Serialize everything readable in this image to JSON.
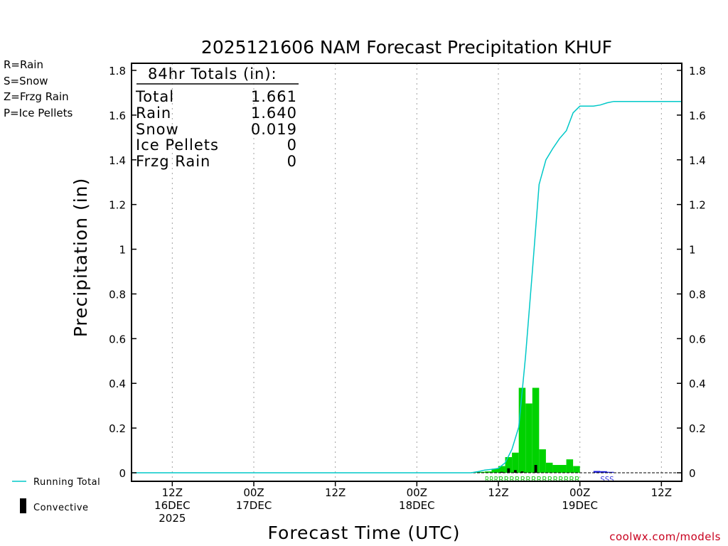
{
  "chart_data": {
    "type": "bar",
    "title": "2025121606 NAM Forecast Precipitation KHUF",
    "xlabel": "Forecast Time (UTC)",
    "ylabel": "Precipitation (in)",
    "ylim": [
      0,
      1.8
    ],
    "xlim": [
      -18,
      63
    ],
    "y_ticks": [
      "0",
      "0.2",
      "0.4",
      "0.6",
      "0.8",
      "1",
      "1.2",
      "1.4",
      "1.6",
      "1.8"
    ],
    "y_tick_values": [
      0,
      0.2,
      0.4,
      0.6,
      0.8,
      1.0,
      1.2,
      1.4,
      1.6,
      1.8
    ],
    "x_ticks": [
      {
        "hour": -12,
        "lines": [
          "12Z",
          "16DEC",
          "2025"
        ]
      },
      {
        "hour": 0,
        "lines": [
          "00Z",
          "17DEC"
        ]
      },
      {
        "hour": 12,
        "lines": [
          "12Z"
        ]
      },
      {
        "hour": 24,
        "lines": [
          "00Z",
          "18DEC"
        ]
      },
      {
        "hour": 36,
        "lines": [
          "12Z"
        ]
      },
      {
        "hour": 48,
        "lines": [
          "00Z",
          "19DEC"
        ]
      },
      {
        "hour": 60,
        "lines": [
          "12Z"
        ]
      }
    ],
    "totals_header": "84hr Totals (in):",
    "totals": [
      {
        "label": "Total",
        "value": "1.661"
      },
      {
        "label": "Rain",
        "value": "1.640"
      },
      {
        "label": "Snow",
        "value": "0.019"
      },
      {
        "label": "Ice Pellets",
        "value": "0"
      },
      {
        "label": "Frzg Rain",
        "value": "0"
      }
    ],
    "precip_type_legend": [
      {
        "text": "R=Rain",
        "color": "#22c822"
      },
      {
        "text": "S=Snow",
        "color": "#3c3cdc"
      },
      {
        "text": "Z=Frzg Rain",
        "color": "#f08c3c"
      },
      {
        "text": "P=Ice Pellets",
        "color": "#e6288c"
      }
    ],
    "line_legend": "Running Total",
    "bar_legend": "Convective",
    "rain_bars": {
      "color": "#00d200",
      "hours": [
        33,
        34,
        35,
        36,
        37,
        38,
        39,
        40,
        41,
        42,
        43,
        44,
        45,
        46,
        47,
        48
      ],
      "values": [
        0.003,
        0.004,
        0.006,
        0.018,
        0.03,
        0.07,
        0.09,
        0.38,
        0.31,
        0.38,
        0.105,
        0.045,
        0.035,
        0.035,
        0.06,
        0.03
      ]
    },
    "snow_bars": {
      "color": "#1e1edc",
      "hours": [
        51,
        52,
        53
      ],
      "values": [
        0.008,
        0.007,
        0.004
      ]
    },
    "convective_bars": {
      "color": "#000000",
      "hours": [
        37,
        38,
        39,
        40,
        42
      ],
      "values": [
        0.004,
        0.02,
        0.012,
        0.006,
        0.035
      ]
    },
    "running_total": {
      "color": "#00c8c8",
      "hours": [
        -18,
        32,
        33,
        34,
        35,
        36,
        37,
        38,
        38.5,
        39,
        40,
        41,
        42,
        43,
        44,
        45,
        46,
        47,
        48,
        49,
        50,
        51,
        52,
        53,
        60,
        63
      ],
      "values": [
        0,
        0,
        0.005,
        0.012,
        0.015,
        0.02,
        0.045,
        0.105,
        0.155,
        0.205,
        0.52,
        0.9,
        1.29,
        1.4,
        1.45,
        1.495,
        1.53,
        1.61,
        1.64,
        1.64,
        1.64,
        1.645,
        1.655,
        1.661,
        1.661,
        1.661
      ]
    },
    "type_strip": [
      {
        "text": "RRR",
        "color": "#22c822",
        "start": 34,
        "end": 36
      },
      {
        "text": "RRRRRRRRRRRRRRR",
        "color": "#22c822",
        "start": 36,
        "end": 48
      },
      {
        "text": "SSS",
        "color": "#3c3cdc",
        "start": 51,
        "end": 53
      }
    ]
  },
  "colors": {
    "grid": "#a0a0a0",
    "axis": "#000000",
    "running_total": "#00c8c8",
    "credit": "#c8001e"
  },
  "credit": "coolwx.com/models"
}
